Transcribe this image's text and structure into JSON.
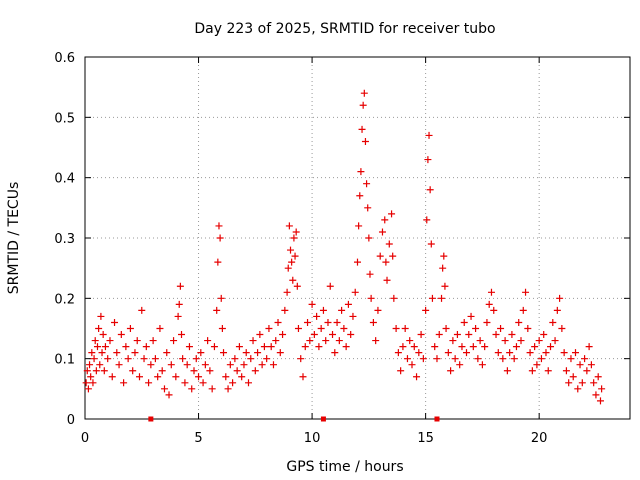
{
  "chart_data": {
    "type": "scatter",
    "title": "Day 223 of 2025, SRMTID for receiver tubo",
    "xlabel": "GPS time / hours",
    "ylabel": "SRMTID / TECUs",
    "xlim": [
      0,
      24
    ],
    "ylim": [
      0,
      0.6
    ],
    "xticks": [
      0,
      5,
      10,
      15,
      20
    ],
    "xtick_labels": [
      "0",
      "5",
      "10",
      "15",
      "20"
    ],
    "yticks": [
      0,
      0.1,
      0.2,
      0.3,
      0.4,
      0.5,
      0.6
    ],
    "ytick_labels": [
      "0",
      "0.1",
      "0.2",
      "0.3",
      "0.4",
      "0.5",
      "0.6"
    ],
    "grid": true,
    "marker": "+",
    "color": "#e60000",
    "baseline_markers_x": [
      2.9,
      10.5,
      15.5
    ],
    "series": [
      {
        "name": "SRMTID",
        "points": [
          [
            0.05,
            0.06
          ],
          [
            0.1,
            0.08
          ],
          [
            0.15,
            0.05
          ],
          [
            0.2,
            0.09
          ],
          [
            0.25,
            0.07
          ],
          [
            0.3,
            0.11
          ],
          [
            0.35,
            0.06
          ],
          [
            0.4,
            0.1
          ],
          [
            0.45,
            0.13
          ],
          [
            0.5,
            0.08
          ],
          [
            0.55,
            0.12
          ],
          [
            0.6,
            0.15
          ],
          [
            0.65,
            0.09
          ],
          [
            0.7,
            0.17
          ],
          [
            0.75,
            0.11
          ],
          [
            0.8,
            0.14
          ],
          [
            0.85,
            0.08
          ],
          [
            0.9,
            0.12
          ],
          [
            1.0,
            0.1
          ],
          [
            1.1,
            0.13
          ],
          [
            1.2,
            0.07
          ],
          [
            1.3,
            0.16
          ],
          [
            1.4,
            0.11
          ],
          [
            1.5,
            0.09
          ],
          [
            1.6,
            0.14
          ],
          [
            1.7,
            0.06
          ],
          [
            1.8,
            0.12
          ],
          [
            1.9,
            0.1
          ],
          [
            2.0,
            0.15
          ],
          [
            2.1,
            0.08
          ],
          [
            2.2,
            0.11
          ],
          [
            2.3,
            0.13
          ],
          [
            2.4,
            0.07
          ],
          [
            2.5,
            0.18
          ],
          [
            2.6,
            0.1
          ],
          [
            2.7,
            0.12
          ],
          [
            2.8,
            0.06
          ],
          [
            2.9,
            0.09
          ],
          [
            3.0,
            0.13
          ],
          [
            3.1,
            0.1
          ],
          [
            3.2,
            0.07
          ],
          [
            3.3,
            0.15
          ],
          [
            3.4,
            0.08
          ],
          [
            3.5,
            0.05
          ],
          [
            3.6,
            0.11
          ],
          [
            3.7,
            0.04
          ],
          [
            3.8,
            0.09
          ],
          [
            3.9,
            0.13
          ],
          [
            4.0,
            0.07
          ],
          [
            4.1,
            0.17
          ],
          [
            4.15,
            0.19
          ],
          [
            4.2,
            0.22
          ],
          [
            4.25,
            0.14
          ],
          [
            4.3,
            0.1
          ],
          [
            4.4,
            0.06
          ],
          [
            4.5,
            0.09
          ],
          [
            4.6,
            0.12
          ],
          [
            4.7,
            0.05
          ],
          [
            4.8,
            0.08
          ],
          [
            4.9,
            0.1
          ],
          [
            5.0,
            0.07
          ],
          [
            5.1,
            0.11
          ],
          [
            5.2,
            0.06
          ],
          [
            5.3,
            0.09
          ],
          [
            5.4,
            0.13
          ],
          [
            5.5,
            0.08
          ],
          [
            5.6,
            0.05
          ],
          [
            5.7,
            0.12
          ],
          [
            5.8,
            0.18
          ],
          [
            5.85,
            0.26
          ],
          [
            5.9,
            0.32
          ],
          [
            5.95,
            0.3
          ],
          [
            6.0,
            0.2
          ],
          [
            6.05,
            0.15
          ],
          [
            6.1,
            0.11
          ],
          [
            6.2,
            0.07
          ],
          [
            6.3,
            0.05
          ],
          [
            6.4,
            0.09
          ],
          [
            6.5,
            0.06
          ],
          [
            6.6,
            0.1
          ],
          [
            6.7,
            0.08
          ],
          [
            6.8,
            0.12
          ],
          [
            6.9,
            0.07
          ],
          [
            7.0,
            0.09
          ],
          [
            7.1,
            0.11
          ],
          [
            7.2,
            0.06
          ],
          [
            7.3,
            0.1
          ],
          [
            7.4,
            0.13
          ],
          [
            7.5,
            0.08
          ],
          [
            7.6,
            0.11
          ],
          [
            7.7,
            0.14
          ],
          [
            7.8,
            0.09
          ],
          [
            7.9,
            0.12
          ],
          [
            8.0,
            0.1
          ],
          [
            8.1,
            0.15
          ],
          [
            8.2,
            0.12
          ],
          [
            8.3,
            0.09
          ],
          [
            8.4,
            0.13
          ],
          [
            8.5,
            0.16
          ],
          [
            8.6,
            0.11
          ],
          [
            8.7,
            0.14
          ],
          [
            8.8,
            0.18
          ],
          [
            8.9,
            0.21
          ],
          [
            8.95,
            0.25
          ],
          [
            9.0,
            0.32
          ],
          [
            9.05,
            0.28
          ],
          [
            9.1,
            0.26
          ],
          [
            9.15,
            0.23
          ],
          [
            9.2,
            0.3
          ],
          [
            9.25,
            0.27
          ],
          [
            9.3,
            0.31
          ],
          [
            9.35,
            0.22
          ],
          [
            9.4,
            0.15
          ],
          [
            9.5,
            0.1
          ],
          [
            9.6,
            0.07
          ],
          [
            9.7,
            0.12
          ],
          [
            9.8,
            0.16
          ],
          [
            9.9,
            0.13
          ],
          [
            10.0,
            0.19
          ],
          [
            10.1,
            0.14
          ],
          [
            10.2,
            0.17
          ],
          [
            10.3,
            0.12
          ],
          [
            10.4,
            0.15
          ],
          [
            10.5,
            0.18
          ],
          [
            10.6,
            0.13
          ],
          [
            10.7,
            0.16
          ],
          [
            10.8,
            0.22
          ],
          [
            10.9,
            0.14
          ],
          [
            11.0,
            0.11
          ],
          [
            11.1,
            0.16
          ],
          [
            11.2,
            0.13
          ],
          [
            11.3,
            0.18
          ],
          [
            11.4,
            0.15
          ],
          [
            11.5,
            0.12
          ],
          [
            11.6,
            0.19
          ],
          [
            11.7,
            0.14
          ],
          [
            11.8,
            0.17
          ],
          [
            11.9,
            0.21
          ],
          [
            12.0,
            0.26
          ],
          [
            12.05,
            0.32
          ],
          [
            12.1,
            0.37
          ],
          [
            12.15,
            0.41
          ],
          [
            12.2,
            0.48
          ],
          [
            12.25,
            0.52
          ],
          [
            12.3,
            0.54
          ],
          [
            12.35,
            0.46
          ],
          [
            12.4,
            0.39
          ],
          [
            12.45,
            0.35
          ],
          [
            12.5,
            0.3
          ],
          [
            12.55,
            0.24
          ],
          [
            12.6,
            0.2
          ],
          [
            12.7,
            0.16
          ],
          [
            12.8,
            0.13
          ],
          [
            12.9,
            0.18
          ],
          [
            13.0,
            0.27
          ],
          [
            13.1,
            0.31
          ],
          [
            13.2,
            0.33
          ],
          [
            13.25,
            0.26
          ],
          [
            13.3,
            0.23
          ],
          [
            13.4,
            0.29
          ],
          [
            13.5,
            0.34
          ],
          [
            13.55,
            0.27
          ],
          [
            13.6,
            0.2
          ],
          [
            13.7,
            0.15
          ],
          [
            13.8,
            0.11
          ],
          [
            13.9,
            0.08
          ],
          [
            14.0,
            0.12
          ],
          [
            14.1,
            0.15
          ],
          [
            14.2,
            0.1
          ],
          [
            14.3,
            0.13
          ],
          [
            14.4,
            0.09
          ],
          [
            14.5,
            0.12
          ],
          [
            14.6,
            0.07
          ],
          [
            14.7,
            0.11
          ],
          [
            14.8,
            0.14
          ],
          [
            14.9,
            0.1
          ],
          [
            15.0,
            0.18
          ],
          [
            15.05,
            0.33
          ],
          [
            15.1,
            0.43
          ],
          [
            15.15,
            0.47
          ],
          [
            15.2,
            0.38
          ],
          [
            15.25,
            0.29
          ],
          [
            15.3,
            0.2
          ],
          [
            15.4,
            0.12
          ],
          [
            15.5,
            0.1
          ],
          [
            15.6,
            0.14
          ],
          [
            15.7,
            0.2
          ],
          [
            15.75,
            0.25
          ],
          [
            15.8,
            0.27
          ],
          [
            15.85,
            0.22
          ],
          [
            15.9,
            0.15
          ],
          [
            16.0,
            0.11
          ],
          [
            16.1,
            0.08
          ],
          [
            16.2,
            0.13
          ],
          [
            16.3,
            0.1
          ],
          [
            16.4,
            0.14
          ],
          [
            16.5,
            0.09
          ],
          [
            16.6,
            0.12
          ],
          [
            16.7,
            0.16
          ],
          [
            16.8,
            0.11
          ],
          [
            16.9,
            0.14
          ],
          [
            17.0,
            0.17
          ],
          [
            17.1,
            0.12
          ],
          [
            17.2,
            0.15
          ],
          [
            17.3,
            0.1
          ],
          [
            17.4,
            0.13
          ],
          [
            17.5,
            0.09
          ],
          [
            17.6,
            0.12
          ],
          [
            17.7,
            0.16
          ],
          [
            17.8,
            0.19
          ],
          [
            17.9,
            0.21
          ],
          [
            18.0,
            0.18
          ],
          [
            18.1,
            0.14
          ],
          [
            18.2,
            0.11
          ],
          [
            18.3,
            0.15
          ],
          [
            18.4,
            0.1
          ],
          [
            18.5,
            0.13
          ],
          [
            18.6,
            0.08
          ],
          [
            18.7,
            0.11
          ],
          [
            18.8,
            0.14
          ],
          [
            18.9,
            0.1
          ],
          [
            19.0,
            0.12
          ],
          [
            19.1,
            0.16
          ],
          [
            19.2,
            0.13
          ],
          [
            19.3,
            0.18
          ],
          [
            19.4,
            0.21
          ],
          [
            19.5,
            0.15
          ],
          [
            19.6,
            0.11
          ],
          [
            19.7,
            0.08
          ],
          [
            19.8,
            0.12
          ],
          [
            19.9,
            0.09
          ],
          [
            20.0,
            0.13
          ],
          [
            20.1,
            0.1
          ],
          [
            20.2,
            0.14
          ],
          [
            20.3,
            0.11
          ],
          [
            20.4,
            0.08
          ],
          [
            20.5,
            0.12
          ],
          [
            20.6,
            0.16
          ],
          [
            20.7,
            0.13
          ],
          [
            20.8,
            0.18
          ],
          [
            20.9,
            0.2
          ],
          [
            21.0,
            0.15
          ],
          [
            21.1,
            0.11
          ],
          [
            21.2,
            0.08
          ],
          [
            21.3,
            0.06
          ],
          [
            21.4,
            0.1
          ],
          [
            21.5,
            0.07
          ],
          [
            21.6,
            0.11
          ],
          [
            21.7,
            0.05
          ],
          [
            21.8,
            0.09
          ],
          [
            21.9,
            0.06
          ],
          [
            22.0,
            0.1
          ],
          [
            22.1,
            0.08
          ],
          [
            22.2,
            0.12
          ],
          [
            22.3,
            0.09
          ],
          [
            22.4,
            0.06
          ],
          [
            22.5,
            0.04
          ],
          [
            22.6,
            0.07
          ],
          [
            22.7,
            0.03
          ],
          [
            22.75,
            0.05
          ]
        ]
      }
    ]
  }
}
